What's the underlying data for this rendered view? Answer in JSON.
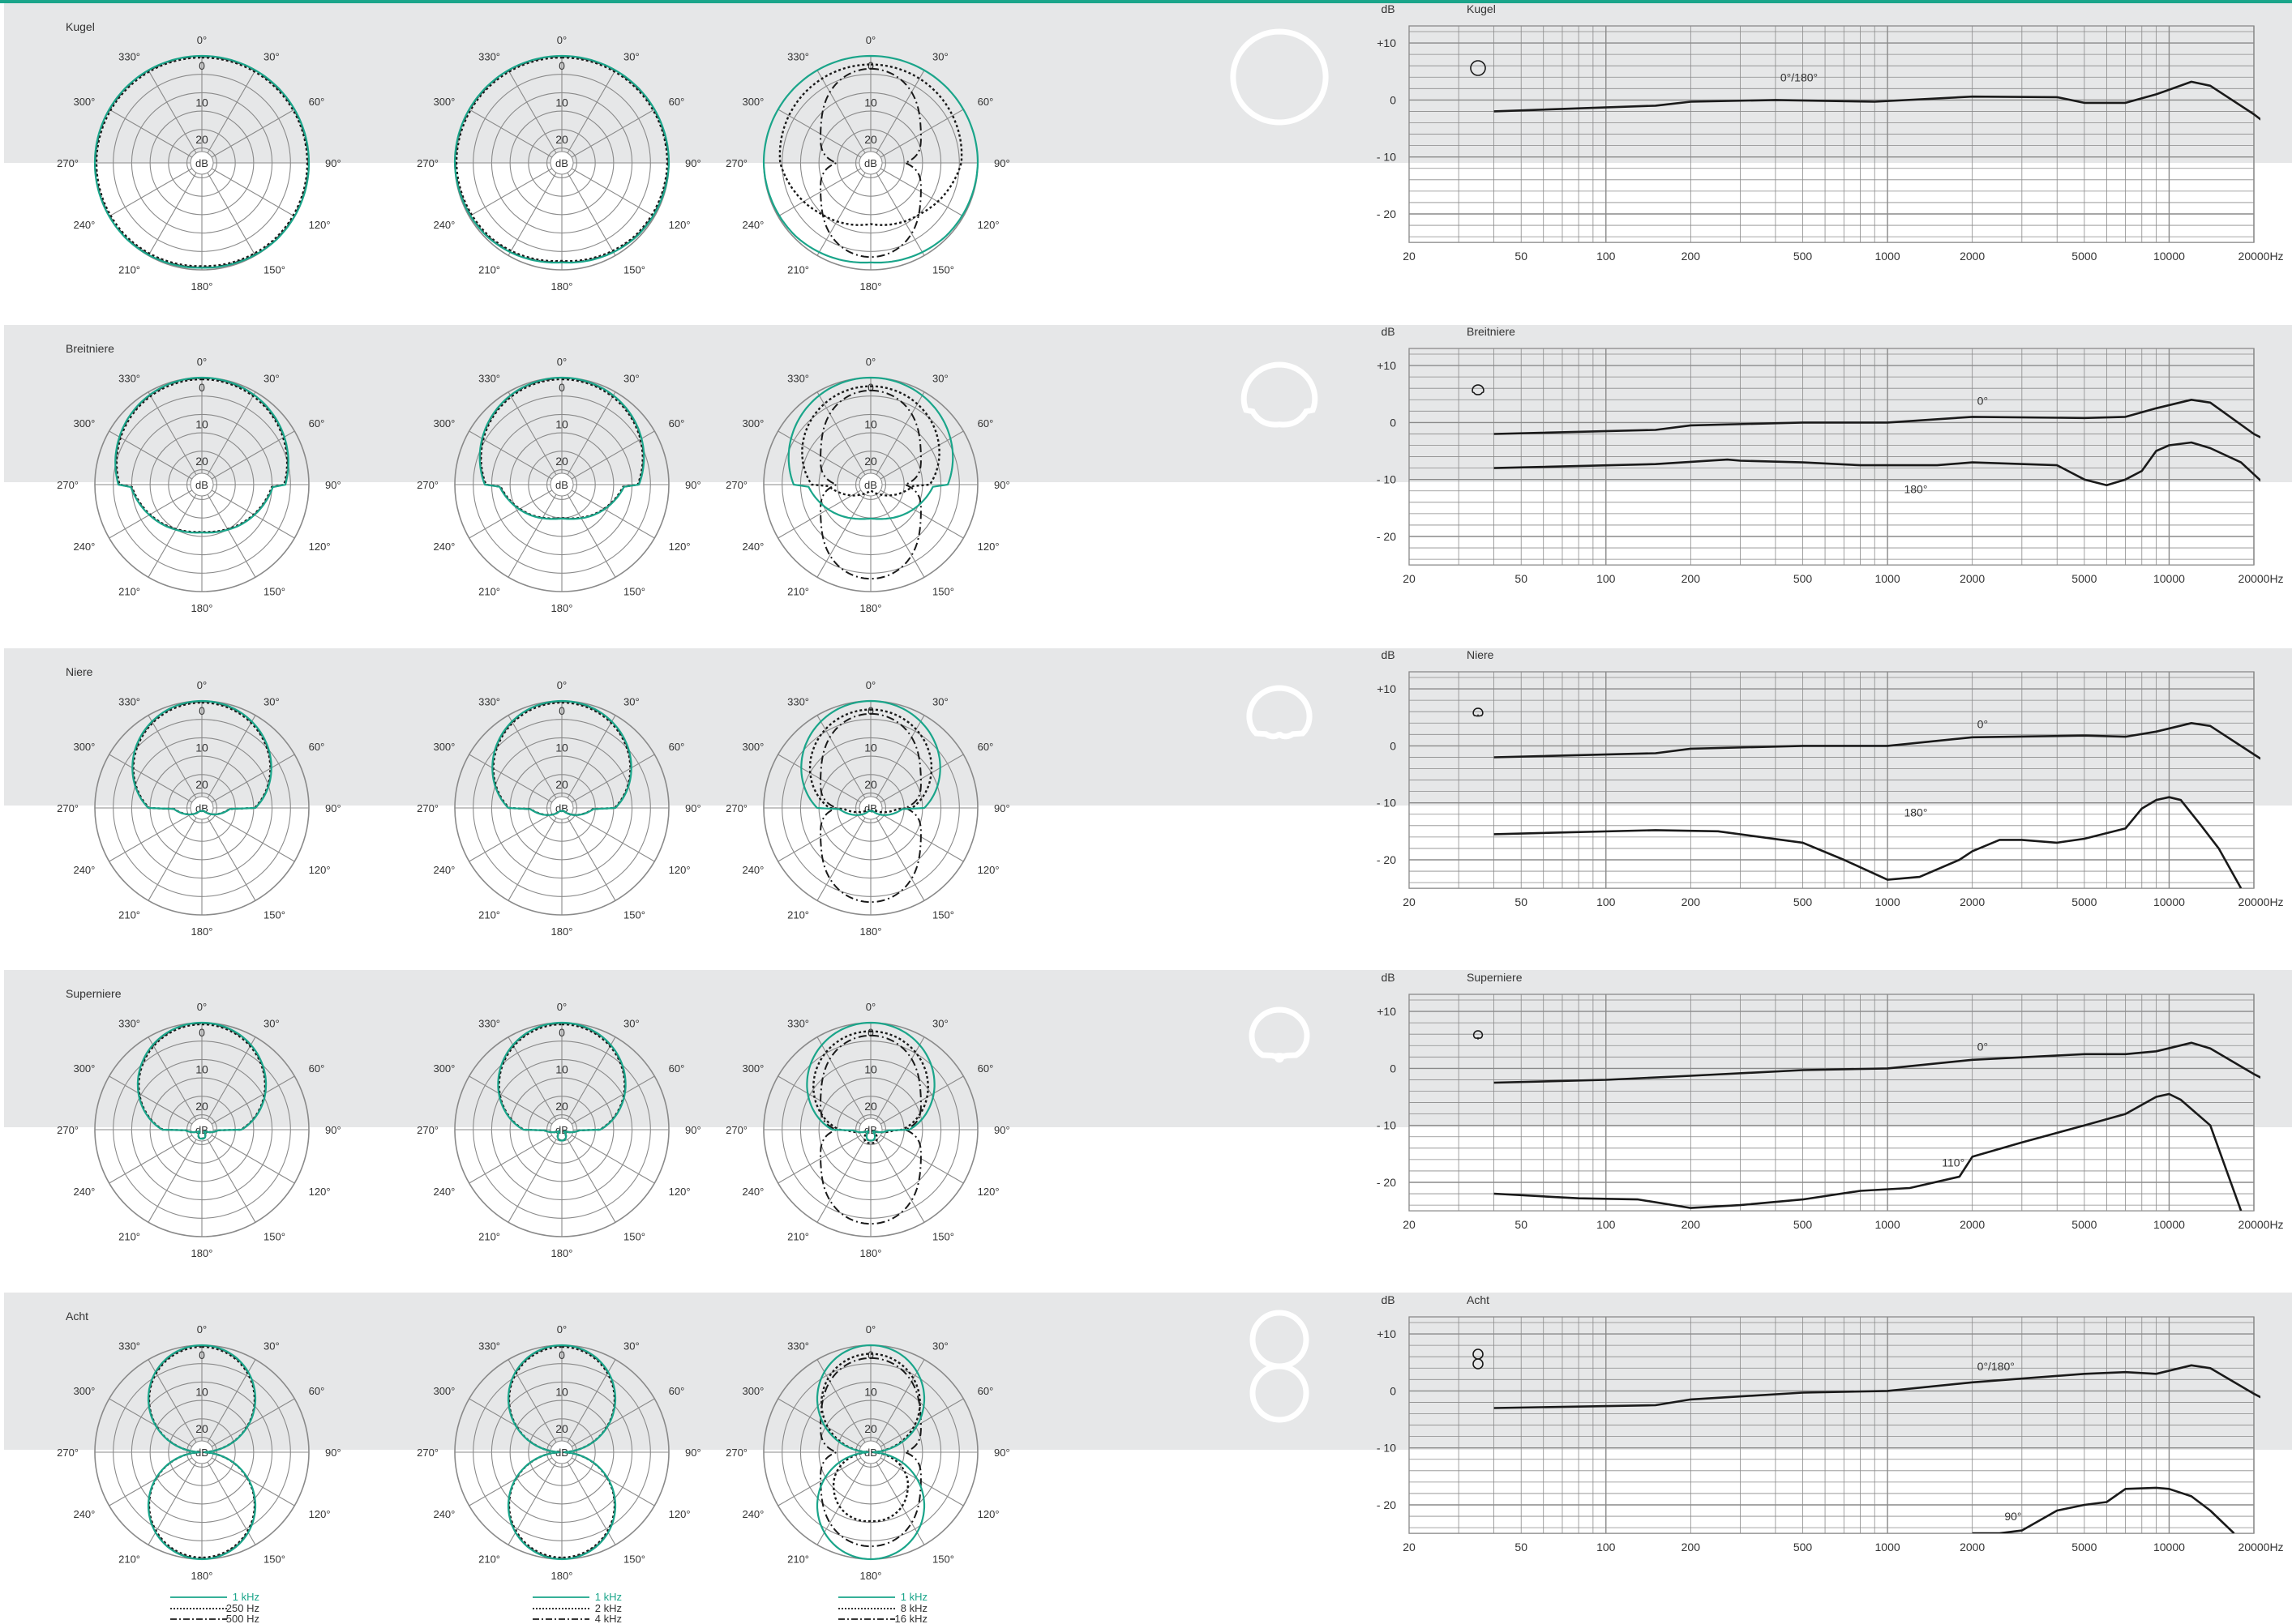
{
  "colors": {
    "accent": "#1aa58a",
    "band": "#e6e7e8",
    "grid": "#8a8a8a",
    "curve": "#1a1a1a",
    "text": "#333333",
    "shape": "#ffffff"
  },
  "legends": [
    {
      "items": [
        "1 kHz",
        "250 Hz",
        "500 Hz"
      ]
    },
    {
      "items": [
        "1 kHz",
        "2 kHz",
        "4 kHz"
      ]
    },
    {
      "items": [
        "1 kHz",
        "8 kHz",
        "16 kHz"
      ]
    }
  ],
  "chart_data": {
    "type": "line",
    "polar_axes": {
      "angle_labels": [
        "0°",
        "30°",
        "60°",
        "90°",
        "120°",
        "150°",
        "180°",
        "210°",
        "240°",
        "270°",
        "300°",
        "330°"
      ],
      "radial_labels": [
        "0",
        "10",
        "20",
        "dB"
      ]
    },
    "frequency_axis": {
      "x_ticks": [
        "20",
        "50",
        "100",
        "200",
        "500",
        "1000",
        "2000",
        "5000",
        "10000",
        "20000"
      ],
      "x_unit": "Hz",
      "y_unit": "dB",
      "y_ticks": [
        "+10",
        "0",
        "- 10",
        "- 20"
      ],
      "xlim": [
        20,
        20000
      ],
      "ylim": [
        -25,
        13
      ],
      "scale": "log"
    },
    "patterns": [
      {
        "name": "Kugel",
        "shape_icon": "omni-shape-icon",
        "polar": {
          "low": {
            "a": 1.0,
            "b": 0.0,
            "rear": [
              1.0,
              1.0,
              0.98
            ]
          },
          "mid": {
            "a": 1.0,
            "b": 0.0,
            "rear": [
              1.0,
              0.98,
              0.93
            ]
          },
          "high": {
            "a": 0.92,
            "b": 0.08,
            "lobe": 0.55,
            "rear": [
              1.0,
              0.84,
              0.74
            ]
          }
        },
        "freq_series": [
          {
            "label": "0°/180°",
            "label_at": [
              400,
              4
            ],
            "points": [
              [
                40,
                -2
              ],
              [
                150,
                -1
              ],
              [
                200,
                -0.3
              ],
              [
                400,
                0
              ],
              [
                900,
                -0.3
              ],
              [
                2000,
                0.6
              ],
              [
                4000,
                0.5
              ],
              [
                5000,
                -0.5
              ],
              [
                7000,
                -0.5
              ],
              [
                9000,
                1
              ],
              [
                12000,
                3.2
              ],
              [
                14000,
                2.5
              ],
              [
                20000,
                -2.5
              ],
              [
                24000,
                -5.5
              ]
            ]
          }
        ]
      },
      {
        "name": "Breitniere",
        "shape_icon": "wide-cardioid-shape-icon",
        "polar": {
          "low": {
            "a": 0.78,
            "b": 0.22,
            "rear": [
              0.86,
              0.84,
              0.8
            ]
          },
          "mid": {
            "a": 0.72,
            "b": 0.28,
            "rear": [
              0.82,
              0.78,
              0.72
            ]
          },
          "high": {
            "a": 0.6,
            "b": 0.4,
            "lobe": 0.5,
            "rear": [
              0.75,
              0.45,
              0.3
            ]
          }
        },
        "freq_series": [
          {
            "label": "0°",
            "label_at": [
              2000,
              3.8
            ],
            "points": [
              [
                40,
                -2
              ],
              [
                150,
                -1.3
              ],
              [
                200,
                -0.5
              ],
              [
                500,
                0
              ],
              [
                1000,
                0
              ],
              [
                2000,
                1
              ],
              [
                5000,
                0.8
              ],
              [
                7000,
                1
              ],
              [
                9000,
                2.5
              ],
              [
                12000,
                4
              ],
              [
                14000,
                3.5
              ],
              [
                20000,
                -2
              ],
              [
                24000,
                -4
              ]
            ]
          },
          {
            "label": "180°",
            "label_at": [
              1100,
              -11.7
            ],
            "points": [
              [
                40,
                -8
              ],
              [
                150,
                -7.3
              ],
              [
                270,
                -6.5
              ],
              [
                300,
                -6.7
              ],
              [
                500,
                -7
              ],
              [
                800,
                -7.5
              ],
              [
                1500,
                -7.5
              ],
              [
                2000,
                -7
              ],
              [
                4000,
                -7.5
              ],
              [
                5000,
                -10
              ],
              [
                6000,
                -11
              ],
              [
                7000,
                -10
              ],
              [
                8000,
                -8.5
              ],
              [
                9000,
                -5
              ],
              [
                10000,
                -4
              ],
              [
                12000,
                -3.5
              ],
              [
                14000,
                -4.5
              ],
              [
                18000,
                -7
              ],
              [
                22000,
                -11
              ],
              [
                24000,
                -13.5
              ]
            ]
          }
        ]
      },
      {
        "name": "Niere",
        "shape_icon": "cardioid-shape-icon",
        "polar": {
          "low": {
            "a": 0.5,
            "b": 0.5,
            "rear": [
              0.55,
              0.45,
              0.28
            ]
          },
          "mid": {
            "a": 0.5,
            "b": 0.5,
            "rear": [
              0.62,
              0.48,
              0.3
            ]
          },
          "high": {
            "a": 0.42,
            "b": 0.58,
            "lobe": 0.45,
            "rear": [
              0.7,
              0.4,
              0.2
            ]
          }
        },
        "freq_series": [
          {
            "label": "0°",
            "label_at": [
              2000,
              3.8
            ],
            "points": [
              [
                40,
                -2
              ],
              [
                150,
                -1.3
              ],
              [
                200,
                -0.5
              ],
              [
                500,
                0
              ],
              [
                1000,
                0
              ],
              [
                2000,
                1.5
              ],
              [
                5000,
                1.8
              ],
              [
                7000,
                1.6
              ],
              [
                9000,
                2.5
              ],
              [
                12000,
                4
              ],
              [
                14000,
                3.5
              ],
              [
                20000,
                -1.5
              ],
              [
                24000,
                -4
              ]
            ]
          },
          {
            "label": "180°",
            "label_at": [
              1100,
              -11.7
            ],
            "points": [
              [
                40,
                -15.5
              ],
              [
                150,
                -14.8
              ],
              [
                250,
                -15
              ],
              [
                500,
                -17
              ],
              [
                700,
                -20
              ],
              [
                1000,
                -23.5
              ],
              [
                1300,
                -23
              ],
              [
                1800,
                -20
              ],
              [
                2000,
                -18.5
              ],
              [
                2500,
                -16.5
              ],
              [
                3000,
                -16.5
              ],
              [
                4000,
                -17
              ],
              [
                5000,
                -16.3
              ],
              [
                7000,
                -14.5
              ],
              [
                8000,
                -11
              ],
              [
                9000,
                -9.5
              ],
              [
                10000,
                -9
              ],
              [
                11000,
                -9.5
              ],
              [
                13000,
                -14
              ],
              [
                15000,
                -18
              ],
              [
                18000,
                -25
              ]
            ]
          }
        ]
      },
      {
        "name": "Superniere",
        "shape_icon": "supercardioid-shape-icon",
        "polar": {
          "low": {
            "a": 0.37,
            "b": 0.63,
            "rear": [
              0.45,
              0.4,
              0.32
            ]
          },
          "mid": {
            "a": 0.36,
            "b": 0.64,
            "rear": [
              0.5,
              0.42,
              0.36
            ]
          },
          "high": {
            "a": 0.32,
            "b": 0.68,
            "lobe": 0.45,
            "rear": [
              0.8,
              0.5,
              0.36
            ]
          }
        },
        "freq_series": [
          {
            "label": "0°",
            "label_at": [
              2000,
              3.8
            ],
            "points": [
              [
                40,
                -2.5
              ],
              [
                100,
                -2
              ],
              [
                200,
                -1.3
              ],
              [
                500,
                -0.3
              ],
              [
                1000,
                0
              ],
              [
                2000,
                1.5
              ],
              [
                5000,
                2.5
              ],
              [
                7000,
                2.5
              ],
              [
                9000,
                3
              ],
              [
                12000,
                4.5
              ],
              [
                14000,
                3.5
              ],
              [
                20000,
                -1
              ],
              [
                24000,
                -3
              ]
            ]
          },
          {
            "label": "110°",
            "label_at": [
              1500,
              -16.5
            ],
            "points": [
              [
                40,
                -22
              ],
              [
                80,
                -22.8
              ],
              [
                130,
                -23
              ],
              [
                200,
                -24.5
              ],
              [
                300,
                -24
              ],
              [
                500,
                -23
              ],
              [
                800,
                -21.5
              ],
              [
                1200,
                -21
              ],
              [
                1800,
                -19
              ],
              [
                2000,
                -15.5
              ],
              [
                3000,
                -13
              ],
              [
                5000,
                -10
              ],
              [
                7000,
                -8
              ],
              [
                9000,
                -5
              ],
              [
                10000,
                -4.5
              ],
              [
                11000,
                -5.5
              ],
              [
                14000,
                -10
              ],
              [
                18000,
                -25
              ]
            ]
          }
        ]
      },
      {
        "name": "Acht",
        "shape_icon": "figure-eight-shape-icon",
        "polar": {
          "low": {
            "a": 0.0,
            "b": 1.0,
            "rear": [
              1.0,
              1.0,
              1.0
            ]
          },
          "mid": {
            "a": 0.0,
            "b": 1.0,
            "rear": [
              1.0,
              1.0,
              1.0
            ]
          },
          "high": {
            "a": 0.0,
            "b": 1.0,
            "lobe": 0.55,
            "rear": [
              0.9,
              0.75,
              0.7
            ]
          }
        },
        "freq_series": [
          {
            "label": "0°/180°",
            "label_at": [
              2000,
              4.3
            ],
            "points": [
              [
                40,
                -3
              ],
              [
                150,
                -2.5
              ],
              [
                200,
                -1.5
              ],
              [
                500,
                -0.3
              ],
              [
                1000,
                0
              ],
              [
                2000,
                1.5
              ],
              [
                5000,
                3
              ],
              [
                7000,
                3.3
              ],
              [
                9000,
                3
              ],
              [
                12000,
                4.5
              ],
              [
                14000,
                4
              ],
              [
                20000,
                -0.5
              ],
              [
                24000,
                -2.5
              ]
            ]
          },
          {
            "label": "90°",
            "label_at": [
              2500,
              -22
            ],
            "points": [
              [
                2000,
                -25.5
              ],
              [
                2500,
                -25
              ],
              [
                3000,
                -24.5
              ],
              [
                4000,
                -21
              ],
              [
                5000,
                -20
              ],
              [
                6000,
                -19.5
              ],
              [
                7000,
                -17.2
              ],
              [
                9000,
                -17
              ],
              [
                10000,
                -17.2
              ],
              [
                12000,
                -18.5
              ],
              [
                14000,
                -21
              ],
              [
                17000,
                -25
              ]
            ]
          }
        ]
      }
    ]
  }
}
